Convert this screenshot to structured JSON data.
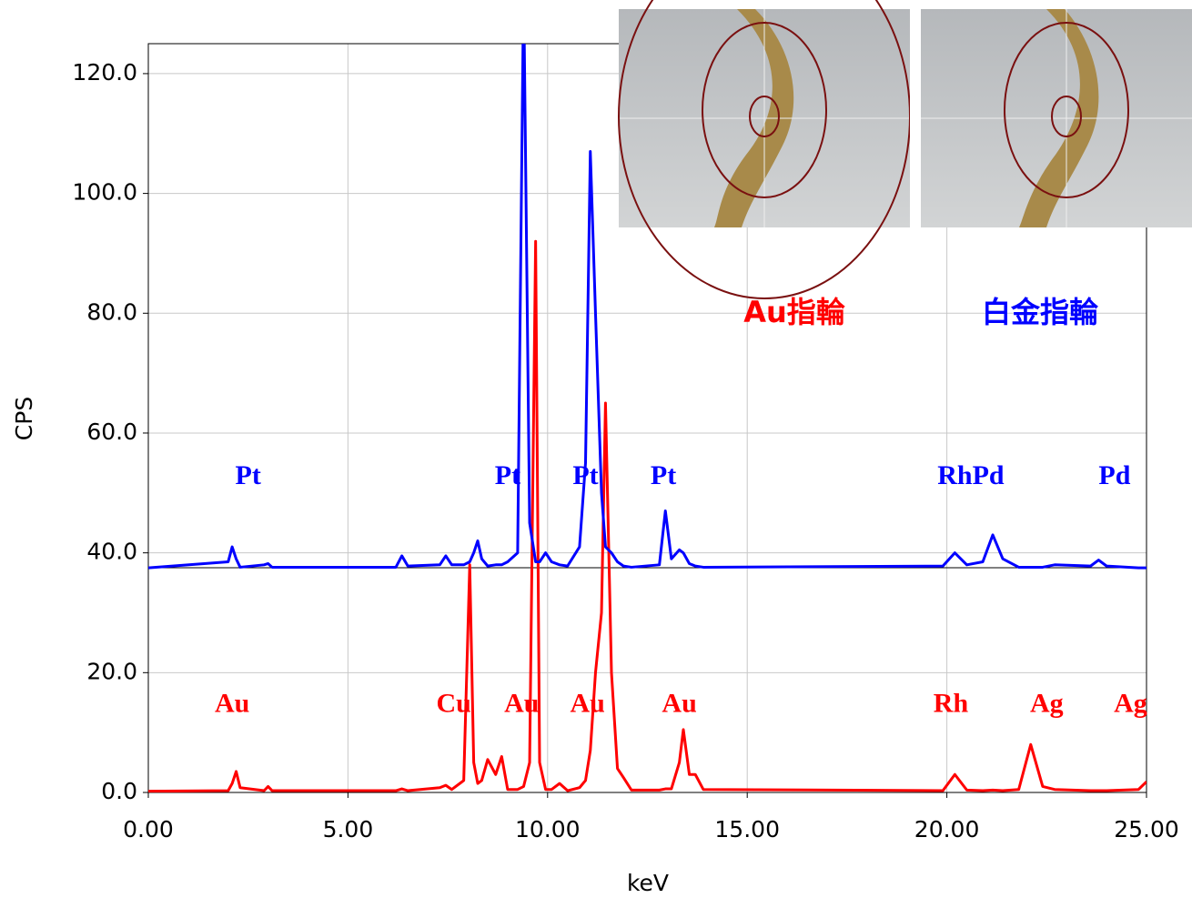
{
  "chart_data": {
    "type": "line",
    "xlabel": "keV",
    "ylabel": "CPS",
    "xlim": [
      0,
      25
    ],
    "ylim": [
      0,
      125
    ],
    "xticks": [
      {
        "value": 0,
        "label": "0.00"
      },
      {
        "value": 5,
        "label": "5.00"
      },
      {
        "value": 10,
        "label": "10.00"
      },
      {
        "value": 15,
        "label": "15.00"
      },
      {
        "value": 20,
        "label": "20.00"
      },
      {
        "value": 25,
        "label": "25.00"
      }
    ],
    "yticks": [
      {
        "value": 0,
        "label": "0.0"
      },
      {
        "value": 20,
        "label": "20.0"
      },
      {
        "value": 40,
        "label": "40.0"
      },
      {
        "value": 60,
        "label": "60.0"
      },
      {
        "value": 80,
        "label": "80.0"
      },
      {
        "value": 100,
        "label": "100.0"
      },
      {
        "value": 120,
        "label": "120.0"
      }
    ],
    "grid": true,
    "x": [
      0,
      2.0,
      2.1,
      2.2,
      2.3,
      2.9,
      3.0,
      3.1,
      6.2,
      6.35,
      6.5,
      7.3,
      7.45,
      7.6,
      7.9,
      8.05,
      8.15,
      8.25,
      8.35,
      8.5,
      8.7,
      8.85,
      9.0,
      9.25,
      9.4,
      9.55,
      9.7,
      9.8,
      9.95,
      10.1,
      10.3,
      10.5,
      10.8,
      10.95,
      11.07,
      11.2,
      11.35,
      11.45,
      11.6,
      11.75,
      11.9,
      12.1,
      12.8,
      12.95,
      13.1,
      13.3,
      13.4,
      13.55,
      13.7,
      13.9,
      19.9,
      20.2,
      20.5,
      20.9,
      21.15,
      21.4,
      21.8,
      22.1,
      22.4,
      22.7,
      23.6,
      23.8,
      24.0,
      24.8,
      25.0
    ],
    "series": [
      {
        "name": "Au指輪",
        "color": "#ff0000",
        "values": [
          0.2,
          0.3,
          1.5,
          3.5,
          0.8,
          0.3,
          1.0,
          0.3,
          0.3,
          0.6,
          0.3,
          0.8,
          1.2,
          0.5,
          2,
          38,
          5,
          1.5,
          2,
          5.5,
          3,
          6,
          0.5,
          0.5,
          1,
          5,
          92,
          5,
          0.5,
          0.5,
          1.5,
          0.3,
          0.8,
          2,
          7,
          20,
          30,
          65,
          20,
          4,
          2.5,
          0.4,
          0.4,
          0.6,
          0.6,
          5,
          10.5,
          3,
          3,
          0.5,
          0.3,
          3,
          0.4,
          0.3,
          0.4,
          0.3,
          0.5,
          8,
          1,
          0.5,
          0.3,
          0.3,
          0.3,
          0.5,
          1.8
        ]
      },
      {
        "name": "白金指輪",
        "color": "#0000ff",
        "values": [
          37.5,
          38.5,
          41,
          39,
          37.6,
          38,
          38.2,
          37.6,
          37.6,
          39.5,
          37.8,
          38,
          39.5,
          38,
          38,
          38.5,
          40,
          42,
          39,
          37.8,
          38,
          38,
          38.5,
          40,
          135,
          45,
          38.5,
          38.5,
          40,
          38.5,
          38,
          37.8,
          41,
          55,
          107,
          80,
          50,
          41,
          40,
          38.5,
          37.8,
          37.6,
          38,
          47,
          39,
          40.5,
          40,
          38.2,
          37.8,
          37.6,
          37.8,
          40,
          38,
          38.5,
          43,
          39,
          37.6,
          37.6,
          37.6,
          38,
          37.8,
          38.8,
          37.8,
          37.5,
          37.5
        ]
      }
    ],
    "annotations": [
      {
        "text": "Pt",
        "x": 2.5,
        "y": 52.5,
        "color": "#0000ff"
      },
      {
        "text": "Pt",
        "x": 9.0,
        "y": 52.5,
        "color": "#0000ff"
      },
      {
        "text": "Pt",
        "x": 10.95,
        "y": 52.5,
        "color": "#0000ff"
      },
      {
        "text": "Pt",
        "x": 12.9,
        "y": 52.5,
        "color": "#0000ff"
      },
      {
        "text": "RhPd",
        "x": 20.6,
        "y": 52.5,
        "color": "#0000ff"
      },
      {
        "text": "Pd",
        "x": 24.2,
        "y": 52.5,
        "color": "#0000ff"
      },
      {
        "text": "Au",
        "x": 2.1,
        "y": 14.5,
        "color": "#ff0000"
      },
      {
        "text": "Cu",
        "x": 7.65,
        "y": 14.5,
        "color": "#ff0000"
      },
      {
        "text": "Au",
        "x": 9.35,
        "y": 14.5,
        "color": "#ff0000"
      },
      {
        "text": "Au",
        "x": 11.0,
        "y": 14.5,
        "color": "#ff0000"
      },
      {
        "text": "Au",
        "x": 13.3,
        "y": 14.5,
        "color": "#ff0000"
      },
      {
        "text": "Rh",
        "x": 20.1,
        "y": 14.5,
        "color": "#ff0000"
      },
      {
        "text": "Ag",
        "x": 22.5,
        "y": 14.5,
        "color": "#ff0000"
      },
      {
        "text": "Ag",
        "x": 24.6,
        "y": 14.5,
        "color": "#ff0000"
      }
    ]
  }
}
